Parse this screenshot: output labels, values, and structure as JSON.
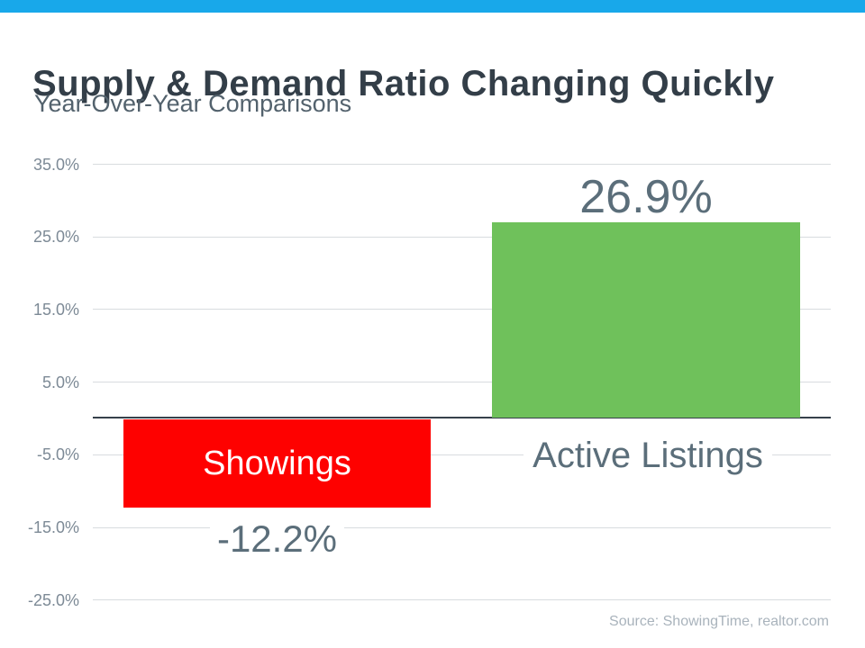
{
  "header": {
    "title": "Supply & Demand Ratio Changing Quickly",
    "subtitle": "Year-Over-Year Comparisons"
  },
  "footer": {
    "source": "Source: ShowingTime, realtor.com"
  },
  "colors": {
    "accent_bar": "#18a8ea",
    "title_text": "#333e48",
    "subtitle_text": "#53626d",
    "gridline": "#d8dcdf",
    "axis_line": "#36414b",
    "bar_showings": "#fe0100",
    "bar_active_listings": "#6fc15b",
    "data_label_text": "#5b6e7a",
    "tick_label_text": "#7d8a96",
    "source_text": "#a9b3bc"
  },
  "chart_data": {
    "type": "bar",
    "title": "Supply & Demand Ratio Changing Quickly",
    "subtitle": "Year-Over-Year Comparisons",
    "categories": [
      "Showings",
      "Active Listings"
    ],
    "values": [
      -12.2,
      26.9
    ],
    "value_labels": [
      "-12.2%",
      "26.9%"
    ],
    "bar_colors": [
      "#fe0100",
      "#6fc15b"
    ],
    "xlabel": "",
    "ylabel": "",
    "ylim": [
      -25,
      35
    ],
    "yticks": [
      35,
      25,
      15,
      5,
      -5,
      -15,
      -25
    ],
    "ytick_labels": [
      "35.0%",
      "25.0%",
      "15.0%",
      "5.0%",
      "-5.0%",
      "-15.0%",
      "-25.0%"
    ],
    "grid": true,
    "legend": false,
    "annotation": "Source: ShowingTime, realtor.com"
  }
}
